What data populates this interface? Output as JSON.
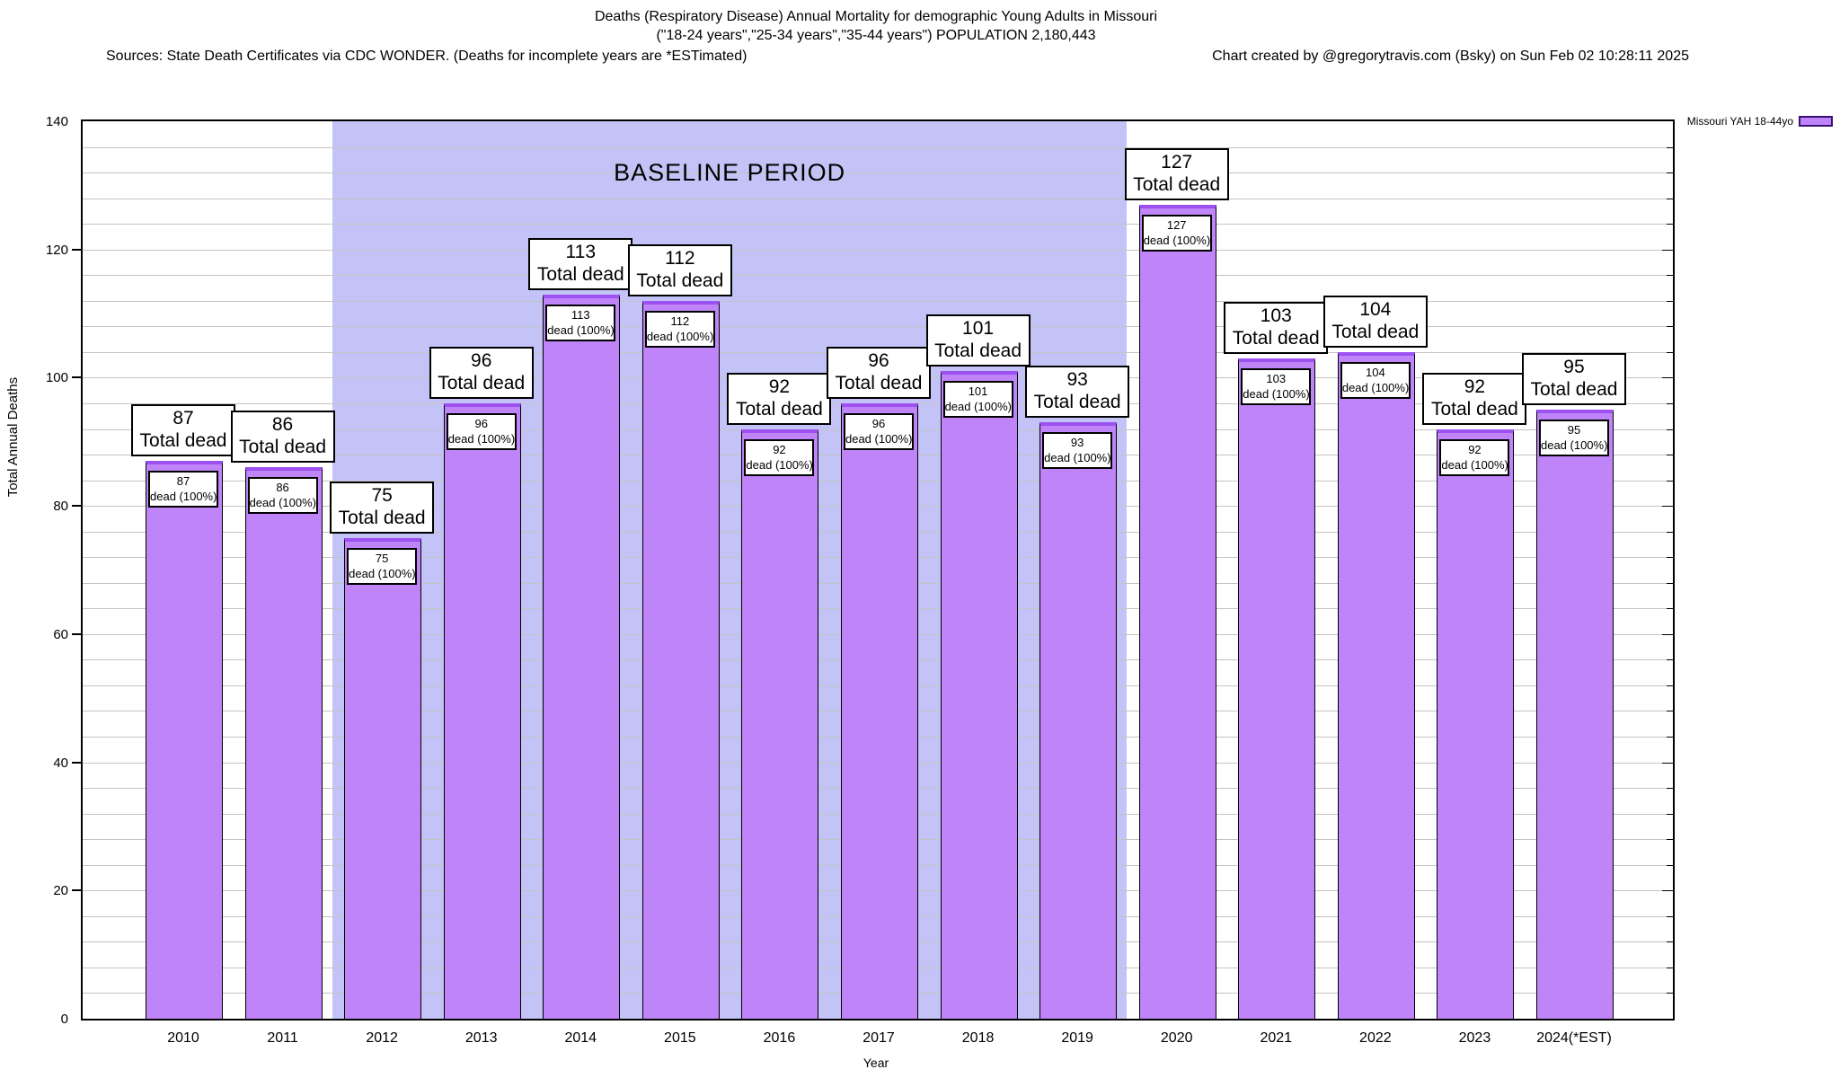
{
  "header": {
    "title_line1": "Deaths (Respiratory Disease) Annual Mortality for demographic Young Adults in Missouri",
    "title_line2": "(\"18-24 years\",\"25-34 years\",\"35-44 years\") POPULATION 2,180,443",
    "sources": "Sources: State Death Certificates via CDC WONDER. (Deaths for incomplete years are *ESTimated)",
    "credit": "Chart created by @gregorytravis.com (Bsky) on Sun Feb 02 10:28:11 2025"
  },
  "legend": {
    "label": "Missouri YAH 18-44yo"
  },
  "axes": {
    "y_title": "Total Annual Deaths",
    "x_title": "Year"
  },
  "chart_data": {
    "type": "bar",
    "title": "Deaths (Respiratory Disease) Annual Mortality for demographic Young Adults in Missouri",
    "categories": [
      "2010",
      "2011",
      "2012",
      "2013",
      "2014",
      "2015",
      "2016",
      "2017",
      "2018",
      "2019",
      "2020",
      "2021",
      "2022",
      "2023",
      "2024(*EST)"
    ],
    "series": [
      {
        "name": "Missouri YAH 18-44yo",
        "values": [
          87,
          86,
          75,
          96,
          113,
          112,
          92,
          96,
          101,
          93,
          127,
          103,
          104,
          92,
          95
        ]
      }
    ],
    "xlabel": "Year",
    "ylabel": "Total Annual Deaths",
    "ylim": [
      0,
      140
    ],
    "y_major_ticks": [
      0,
      20,
      40,
      60,
      80,
      100,
      120,
      140
    ],
    "y_minor_step": 4,
    "grid": true,
    "legend_position": "top-right",
    "outer_label_suffix": "Total dead",
    "inner_label_suffix": "dead (100%)",
    "annotation": {
      "label": "BASELINE PERIOD",
      "start_category": "2012",
      "end_category": "2019"
    },
    "colors": {
      "bar_fill": "#be84f8",
      "bar_top": "#9c51f0",
      "bar_border": "#000000",
      "baseline_region": "#c3c3f7",
      "gridline": "#c4c4c4"
    }
  }
}
